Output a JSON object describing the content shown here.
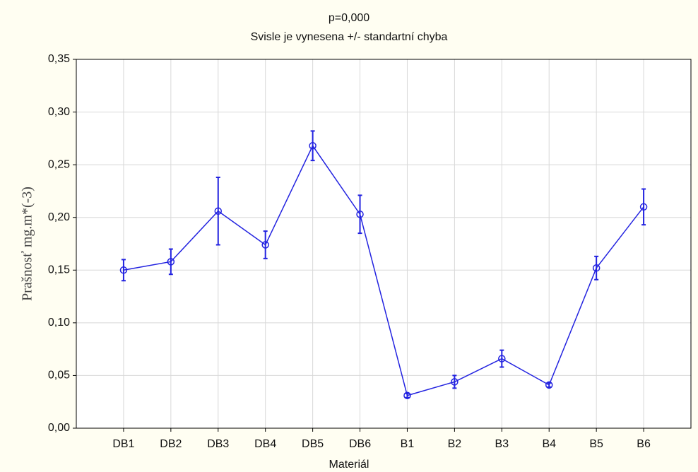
{
  "chart_data": {
    "type": "line",
    "title": "p=0,000",
    "subtitle": "Svisle je vynesena +/- standartní chyba",
    "x_label": "Materiál",
    "y_label": "Prašnosť mg.m*(-3)",
    "categories": [
      "DB1",
      "DB2",
      "DB3",
      "DB4",
      "DB5",
      "DB6",
      "B1",
      "B2",
      "B3",
      "B4",
      "B5",
      "B6"
    ],
    "series": [
      {
        "name": "Prašnosť",
        "color": "#2323e0",
        "values": [
          0.15,
          0.158,
          0.206,
          0.174,
          0.268,
          0.203,
          0.031,
          0.044,
          0.066,
          0.041,
          0.152,
          0.21
        ],
        "errors": [
          0.01,
          0.012,
          0.032,
          0.013,
          0.014,
          0.018,
          0.002,
          0.006,
          0.008,
          0.002,
          0.011,
          0.017
        ]
      }
    ],
    "ylim": [
      0,
      0.35
    ],
    "yticks": [
      {
        "value": 0,
        "label": "0,00"
      },
      {
        "value": 0.05,
        "label": "0,05"
      },
      {
        "value": 0.1,
        "label": "0,10"
      },
      {
        "value": 0.15,
        "label": "0,15"
      },
      {
        "value": 0.2,
        "label": "0,20"
      },
      {
        "value": 0.25,
        "label": "0,25"
      },
      {
        "value": 0.3,
        "label": "0,30"
      },
      {
        "value": 0.35,
        "label": "0,35"
      }
    ],
    "grid": true
  }
}
